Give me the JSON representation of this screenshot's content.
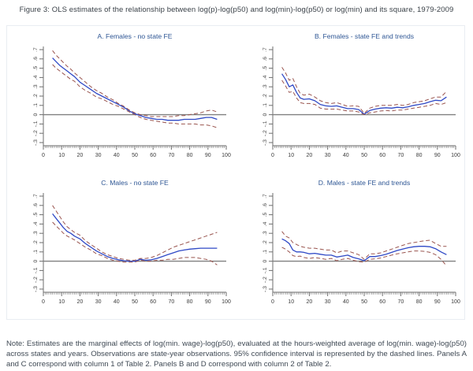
{
  "figure_title": "Figure 3: OLS estimates of the relationship between log(p)-log(p50) and log(min)-log(p50) or log(min) and its square, 1979-2009",
  "note": "Note: Estimates are the marginal effects of log(min. wage)-log(p50), evaluated at the hours-weighted average of log(min. wage)-log(p50) across states and years. Observations are state-year observations. 95% confidence interval is represented by the dashed lines. Panels A and C correspond with column 1 of Table 2. Panels B and D correspond with column 2 of Table 2.",
  "colors": {
    "estimate": "#2f49c6",
    "ci": "#99544e",
    "axis": "#6e6e6e",
    "zero_line": "#808080",
    "tick_label": "#3c3c3c",
    "panel_title": "#2e5694",
    "frame_border": "#e9edf2"
  },
  "chart_data": [
    {
      "type": "line",
      "title": "A. Females - no state FE",
      "xlabel": "",
      "ylabel": "",
      "xlim": [
        0,
        100
      ],
      "ylim": [
        -0.3,
        0.7
      ],
      "xticks": [
        0,
        10,
        20,
        30,
        40,
        50,
        60,
        70,
        80,
        90,
        100
      ],
      "xminor_step": 1,
      "ytick_values": [
        0.7,
        0.6,
        0.5,
        0.4,
        0.3,
        0.2,
        0.1,
        0,
        -0.1,
        -0.2,
        -0.3
      ],
      "ytick_labels": [
        ".7",
        ".6",
        ".5",
        ".4",
        ".3",
        ".2",
        ".1",
        "0",
        "-.1",
        "-.2",
        "-.3"
      ],
      "grid": false,
      "legend": "none",
      "x": [
        5,
        7,
        9,
        11,
        13,
        15,
        17,
        20,
        23,
        26,
        29,
        32,
        35,
        38,
        41,
        44,
        47,
        50,
        53,
        56,
        59,
        62,
        65,
        68,
        71,
        74,
        77,
        80,
        83,
        86,
        89,
        92,
        95
      ],
      "series": [
        {
          "name": "estimate",
          "style": "solid",
          "color_key": "estimate",
          "y": [
            0.61,
            0.57,
            0.53,
            0.5,
            0.47,
            0.44,
            0.41,
            0.35,
            0.31,
            0.27,
            0.23,
            0.2,
            0.17,
            0.14,
            0.11,
            0.08,
            0.04,
            0.01,
            -0.01,
            -0.03,
            -0.04,
            -0.05,
            -0.05,
            -0.06,
            -0.06,
            -0.06,
            -0.05,
            -0.05,
            -0.05,
            -0.04,
            -0.03,
            -0.03,
            -0.05
          ]
        },
        {
          "name": "ci-upper",
          "style": "dashed",
          "color_key": "ci",
          "y": [
            0.69,
            0.64,
            0.6,
            0.56,
            0.52,
            0.49,
            0.45,
            0.4,
            0.35,
            0.3,
            0.26,
            0.23,
            0.19,
            0.16,
            0.12,
            0.09,
            0.05,
            0.02,
            0.0,
            -0.01,
            -0.02,
            -0.02,
            -0.02,
            -0.02,
            -0.02,
            -0.01,
            -0.01,
            0.0,
            0.01,
            0.02,
            0.04,
            0.05,
            0.03
          ]
        },
        {
          "name": "ci-lower",
          "style": "dashed",
          "color_key": "ci",
          "y": [
            0.54,
            0.5,
            0.47,
            0.44,
            0.41,
            0.38,
            0.36,
            0.3,
            0.26,
            0.23,
            0.19,
            0.17,
            0.14,
            0.11,
            0.09,
            0.06,
            0.03,
            0.0,
            -0.03,
            -0.05,
            -0.06,
            -0.07,
            -0.08,
            -0.09,
            -0.09,
            -0.1,
            -0.1,
            -0.1,
            -0.1,
            -0.11,
            -0.11,
            -0.12,
            -0.14
          ]
        }
      ]
    },
    {
      "type": "line",
      "title": "B. Females - state FE and trends",
      "xlabel": "",
      "ylabel": "",
      "xlim": [
        0,
        100
      ],
      "ylim": [
        -0.3,
        0.7
      ],
      "xticks": [
        0,
        10,
        20,
        30,
        40,
        50,
        60,
        70,
        80,
        90,
        100
      ],
      "xminor_step": 1,
      "ytick_values": [
        0.7,
        0.6,
        0.5,
        0.4,
        0.3,
        0.2,
        0.1,
        0,
        -0.1,
        -0.2,
        -0.3
      ],
      "ytick_labels": [
        ".7",
        ".6",
        ".5",
        ".4",
        ".3",
        ".2",
        ".1",
        "0",
        "-.1",
        "-.2",
        "-.3"
      ],
      "grid": false,
      "legend": "none",
      "x": [
        5,
        7,
        9,
        11,
        13,
        15,
        17,
        20,
        23,
        26,
        29,
        32,
        35,
        38,
        41,
        44,
        47,
        50,
        53,
        56,
        59,
        62,
        65,
        68,
        71,
        74,
        77,
        80,
        83,
        86,
        89,
        92,
        95
      ],
      "series": [
        {
          "name": "estimate",
          "style": "solid",
          "color_key": "estimate",
          "y": [
            0.44,
            0.38,
            0.3,
            0.32,
            0.24,
            0.18,
            0.165,
            0.17,
            0.15,
            0.11,
            0.095,
            0.09,
            0.095,
            0.08,
            0.065,
            0.065,
            0.055,
            0.005,
            0.045,
            0.06,
            0.07,
            0.075,
            0.07,
            0.08,
            0.075,
            0.085,
            0.1,
            0.11,
            0.12,
            0.14,
            0.155,
            0.15,
            0.19
          ]
        },
        {
          "name": "ci-upper",
          "style": "dashed",
          "color_key": "ci",
          "y": [
            0.51,
            0.45,
            0.37,
            0.39,
            0.3,
            0.23,
            0.21,
            0.22,
            0.19,
            0.15,
            0.13,
            0.12,
            0.13,
            0.11,
            0.09,
            0.095,
            0.09,
            0.015,
            0.07,
            0.09,
            0.1,
            0.1,
            0.1,
            0.11,
            0.1,
            0.11,
            0.13,
            0.14,
            0.15,
            0.17,
            0.19,
            0.19,
            0.25
          ]
        },
        {
          "name": "ci-lower",
          "style": "dashed",
          "color_key": "ci",
          "y": [
            0.37,
            0.31,
            0.24,
            0.25,
            0.18,
            0.13,
            0.12,
            0.12,
            0.11,
            0.07,
            0.06,
            0.06,
            0.06,
            0.05,
            0.04,
            0.04,
            0.03,
            0.0,
            0.02,
            0.03,
            0.04,
            0.045,
            0.04,
            0.05,
            0.05,
            0.06,
            0.07,
            0.08,
            0.09,
            0.1,
            0.12,
            0.11,
            0.13
          ]
        }
      ]
    },
    {
      "type": "line",
      "title": "C. Males - no state FE",
      "xlabel": "",
      "ylabel": "",
      "xlim": [
        0,
        100
      ],
      "ylim": [
        -0.3,
        0.7
      ],
      "xticks": [
        0,
        10,
        20,
        30,
        40,
        50,
        60,
        70,
        80,
        90,
        100
      ],
      "xminor_step": 1,
      "ytick_values": [
        0.7,
        0.6,
        0.5,
        0.4,
        0.3,
        0.2,
        0.1,
        0,
        -0.1,
        -0.2,
        -0.3
      ],
      "ytick_labels": [
        ".7",
        ".6",
        ".5",
        ".4",
        ".3",
        ".2",
        ".1",
        "0",
        "-.1",
        "-.2",
        "-.3"
      ],
      "grid": false,
      "legend": "none",
      "x": [
        5,
        7,
        9,
        11,
        13,
        15,
        17,
        20,
        23,
        26,
        29,
        32,
        35,
        38,
        41,
        44,
        47,
        50,
        53,
        56,
        59,
        62,
        65,
        68,
        71,
        74,
        77,
        80,
        83,
        86,
        89,
        92,
        95
      ],
      "series": [
        {
          "name": "estimate",
          "style": "solid",
          "color_key": "estimate",
          "y": [
            0.51,
            0.46,
            0.41,
            0.36,
            0.32,
            0.3,
            0.27,
            0.24,
            0.19,
            0.15,
            0.11,
            0.08,
            0.05,
            0.03,
            0.015,
            0.005,
            0.0,
            0.0,
            0.02,
            0.01,
            0.015,
            0.03,
            0.05,
            0.07,
            0.09,
            0.11,
            0.12,
            0.13,
            0.135,
            0.14,
            0.14,
            0.14,
            0.14
          ]
        },
        {
          "name": "ci-upper",
          "style": "dashed",
          "color_key": "ci",
          "y": [
            0.6,
            0.54,
            0.48,
            0.42,
            0.37,
            0.34,
            0.31,
            0.28,
            0.22,
            0.18,
            0.14,
            0.1,
            0.07,
            0.05,
            0.03,
            0.02,
            0.01,
            0.01,
            0.03,
            0.03,
            0.04,
            0.06,
            0.09,
            0.12,
            0.15,
            0.17,
            0.19,
            0.21,
            0.23,
            0.25,
            0.27,
            0.29,
            0.31
          ]
        },
        {
          "name": "ci-lower",
          "style": "dashed",
          "color_key": "ci",
          "y": [
            0.42,
            0.38,
            0.34,
            0.3,
            0.27,
            0.25,
            0.23,
            0.19,
            0.15,
            0.12,
            0.08,
            0.06,
            0.03,
            0.01,
            0.0,
            -0.01,
            -0.01,
            -0.01,
            0.01,
            0.0,
            0.0,
            0.01,
            0.01,
            0.02,
            0.02,
            0.03,
            0.04,
            0.04,
            0.04,
            0.03,
            0.02,
            0.0,
            -0.04
          ]
        }
      ]
    },
    {
      "type": "line",
      "title": "D. Males - state FE and trends",
      "xlabel": "",
      "ylabel": "",
      "xlim": [
        0,
        100
      ],
      "ylim": [
        -0.3,
        0.7
      ],
      "xticks": [
        0,
        10,
        20,
        30,
        40,
        50,
        60,
        70,
        80,
        90,
        100
      ],
      "xminor_step": 1,
      "ytick_values": [
        0.7,
        0.6,
        0.5,
        0.4,
        0.3,
        0.2,
        0.1,
        0,
        -0.1,
        -0.2,
        -0.3
      ],
      "ytick_labels": [
        ".7",
        ".6",
        ".5",
        ".4",
        ".3",
        ".2",
        ".1",
        "0",
        "-.1",
        "-.2",
        "-.3"
      ],
      "grid": false,
      "legend": "none",
      "x": [
        5,
        7,
        9,
        11,
        13,
        15,
        17,
        20,
        23,
        26,
        29,
        32,
        35,
        38,
        41,
        44,
        47,
        50,
        53,
        56,
        59,
        62,
        65,
        68,
        71,
        74,
        77,
        80,
        83,
        86,
        89,
        92,
        95
      ],
      "series": [
        {
          "name": "estimate",
          "style": "solid",
          "color_key": "estimate",
          "y": [
            0.24,
            0.22,
            0.19,
            0.12,
            0.1,
            0.1,
            0.095,
            0.08,
            0.085,
            0.075,
            0.065,
            0.065,
            0.045,
            0.055,
            0.065,
            0.04,
            0.025,
            0.005,
            0.05,
            0.05,
            0.06,
            0.075,
            0.095,
            0.115,
            0.13,
            0.145,
            0.155,
            0.16,
            0.16,
            0.155,
            0.135,
            0.1,
            0.07
          ]
        },
        {
          "name": "ci-upper",
          "style": "dashed",
          "color_key": "ci",
          "y": [
            0.32,
            0.27,
            0.25,
            0.2,
            0.18,
            0.16,
            0.15,
            0.14,
            0.14,
            0.13,
            0.12,
            0.12,
            0.09,
            0.11,
            0.11,
            0.09,
            0.07,
            0.02,
            0.08,
            0.08,
            0.09,
            0.11,
            0.13,
            0.15,
            0.17,
            0.19,
            0.2,
            0.21,
            0.22,
            0.225,
            0.19,
            0.16,
            0.16
          ]
        },
        {
          "name": "ci-lower",
          "style": "dashed",
          "color_key": "ci",
          "y": [
            0.15,
            0.13,
            0.1,
            0.06,
            0.05,
            0.055,
            0.04,
            0.03,
            0.04,
            0.03,
            0.02,
            0.03,
            0.005,
            0.02,
            0.03,
            0.01,
            -0.005,
            -0.01,
            0.02,
            0.025,
            0.035,
            0.05,
            0.065,
            0.08,
            0.09,
            0.1,
            0.11,
            0.11,
            0.105,
            0.095,
            0.07,
            0.02,
            -0.05
          ]
        }
      ]
    }
  ]
}
